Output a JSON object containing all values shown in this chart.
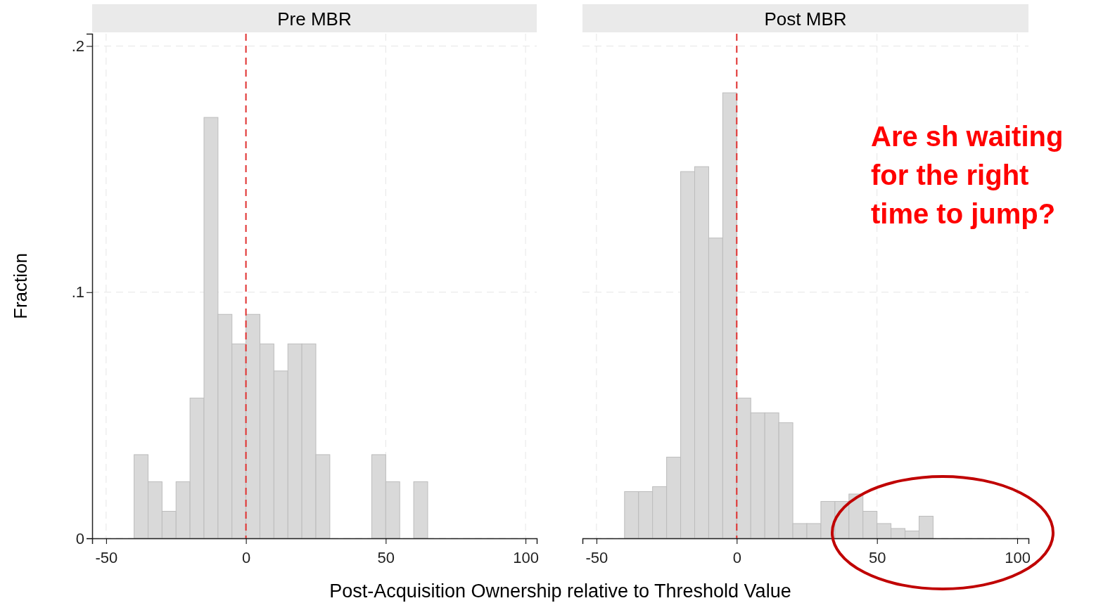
{
  "chart_data": [
    {
      "type": "histogram",
      "title": "Pre MBR",
      "xlabel": "Post-Acquisition Ownership relative to Threshold Value",
      "ylabel": "Fraction",
      "bins": [
        -40,
        -35,
        -30,
        -25,
        -20,
        -15,
        -10,
        -5,
        0,
        5,
        10,
        15,
        20,
        25,
        30,
        35,
        40,
        45,
        50,
        55,
        60,
        65
      ],
      "values": [
        0.034,
        0.023,
        0.011,
        0.023,
        0.057,
        0.171,
        0.091,
        0.079,
        0.091,
        0.079,
        0.068,
        0.079,
        0.079,
        0.034,
        0,
        0,
        0,
        0.034,
        0.023,
        0,
        0.023
      ],
      "color": "#d9d9d9",
      "xlim": [
        -55,
        104
      ],
      "xticks": [
        -50,
        0,
        50,
        100
      ],
      "ylim": [
        0,
        0.205
      ],
      "yticks": [
        {
          "value": 0,
          "label": "0"
        },
        {
          "value": 0.1,
          "label": ".1"
        },
        {
          "value": 0.2,
          "label": ".2"
        }
      ],
      "grid": true,
      "ref_lines": [
        {
          "axis": "x",
          "value": 0,
          "color": "#e0302f",
          "line_style": "dashed"
        }
      ]
    },
    {
      "type": "histogram",
      "title": "Post MBR",
      "bins": [
        -40,
        -35,
        -30,
        -25,
        -20,
        -15,
        -10,
        -5,
        0,
        5,
        10,
        15,
        20,
        25,
        30,
        35,
        40,
        45,
        50,
        55,
        60,
        65,
        70
      ],
      "values": [
        0.019,
        0.019,
        0.021,
        0.033,
        0.149,
        0.151,
        0.122,
        0.181,
        0.057,
        0.051,
        0.051,
        0.047,
        0.006,
        0.006,
        0.015,
        0.015,
        0.018,
        0.011,
        0.006,
        0.004,
        0.003,
        0.009
      ],
      "color": "#d9d9d9",
      "xlim": [
        -55,
        104
      ],
      "xticks": [
        -50,
        0,
        50,
        100
      ],
      "ylim": [
        0,
        0.205
      ],
      "yticks": [
        0,
        0.1,
        0.2
      ],
      "grid": true,
      "tick_labels": "x",
      "ref_lines": [
        {
          "axis": "x",
          "value": 0,
          "color": "#e0302f",
          "line_style": "dashed"
        }
      ],
      "annotations": [
        "Are sh waiting for the right time to jump?"
      ]
    }
  ]
}
